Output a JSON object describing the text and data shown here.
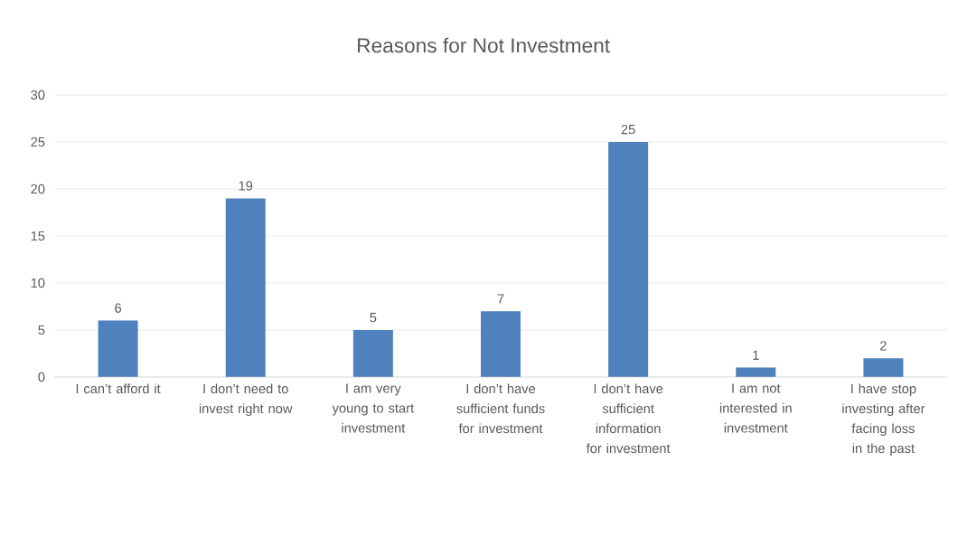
{
  "chart_data": {
    "type": "bar",
    "title": "Reasons for Not Investment",
    "categories": [
      "I can’t afford it",
      "I don’t need to invest right now",
      "I am very young to start investment",
      "I don’t have sufficient funds for investment",
      "I don’t have sufficient information for investment",
      "I am not interested in investment",
      "I have stop investing after facing loss in the past"
    ],
    "values": [
      6,
      19,
      5,
      7,
      25,
      1,
      2
    ],
    "color": "#4f81bd",
    "ylim": [
      0,
      30
    ],
    "yticks": [
      0,
      5,
      10,
      15,
      20,
      25,
      30
    ],
    "grid": "y",
    "data_labels": true
  }
}
